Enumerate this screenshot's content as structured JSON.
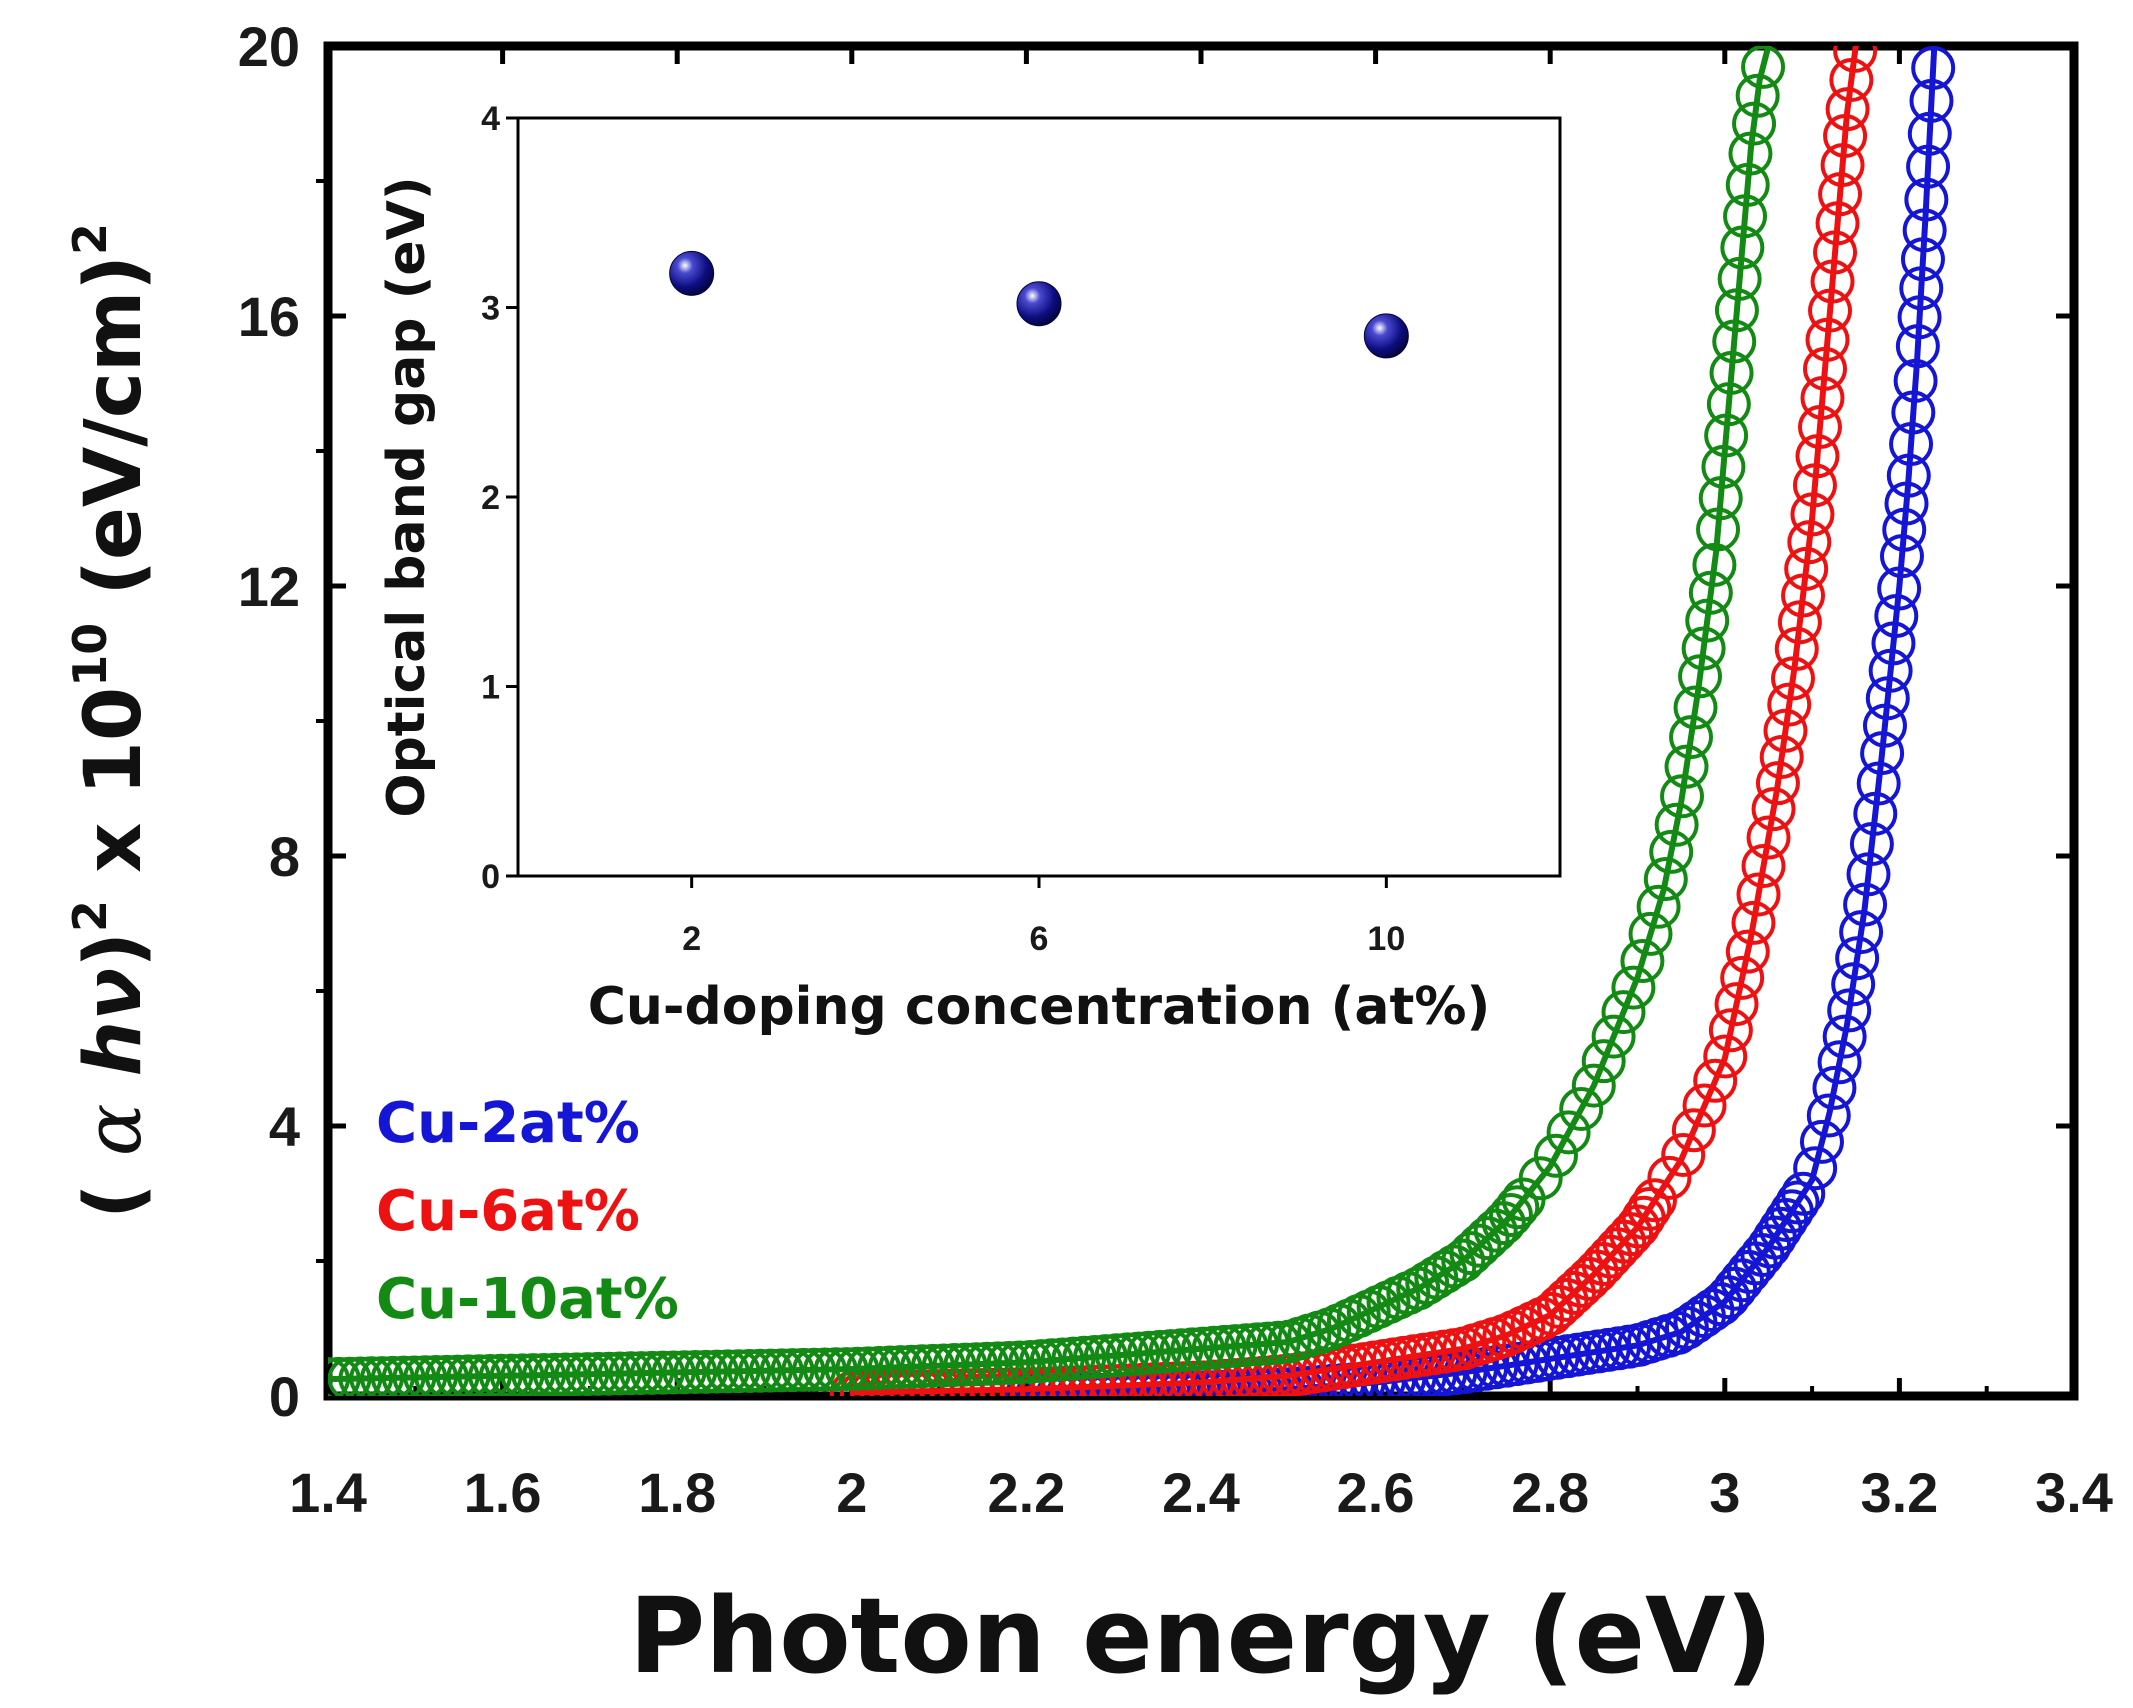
{
  "chart_data": [
    {
      "type": "scatter",
      "role": "main",
      "title": "",
      "xlabel": "Photon energy (eV)",
      "ylabel": {
        "open": "( ",
        "alpha": "α",
        "hv": " hν",
        "close": ")",
        "sup1": "2",
        "mid": " x 10",
        "sup2": "10",
        "unit": " (eV/cm)",
        "sup3": "2"
      },
      "xlim": [
        1.4,
        3.4
      ],
      "ylim": [
        0,
        20
      ],
      "xticks": [
        "1.4",
        "1.6",
        "1.8",
        "2",
        "2.2",
        "2.4",
        "2.6",
        "2.8",
        "3",
        "3.2",
        "3.4"
      ],
      "yticks": [
        "0",
        "4",
        "8",
        "12",
        "16",
        "20"
      ],
      "legend_position": "bottom-left",
      "series": [
        {
          "name": "Cu-2at%",
          "color": "#1515d6",
          "marker": "open-circle",
          "fit_line": true,
          "x": [
            2.2,
            2.4,
            2.5,
            2.6,
            2.7,
            2.8,
            2.85,
            2.9,
            2.95,
            3.0,
            3.05,
            3.1,
            3.12,
            3.14,
            3.16,
            3.18,
            3.2,
            3.21,
            3.22,
            3.23,
            3.24
          ],
          "y": [
            0.0,
            0.05,
            0.1,
            0.2,
            0.35,
            0.55,
            0.65,
            0.75,
            0.95,
            1.4,
            2.2,
            3.2,
            4.2,
            5.5,
            7.2,
            9.5,
            12.0,
            13.5,
            15.3,
            17.5,
            20.0
          ]
        },
        {
          "name": "Cu-6at%",
          "color": "#ee1111",
          "marker": "open-circle",
          "fit_line": true,
          "x": [
            2.0,
            2.2,
            2.4,
            2.5,
            2.6,
            2.65,
            2.7,
            2.75,
            2.8,
            2.85,
            2.9,
            2.95,
            3.0,
            3.03,
            3.06,
            3.08,
            3.1,
            3.11,
            3.12,
            3.13,
            3.14,
            3.15
          ],
          "y": [
            0.05,
            0.1,
            0.2,
            0.3,
            0.5,
            0.6,
            0.7,
            0.9,
            1.2,
            1.8,
            2.5,
            3.5,
            5.0,
            6.8,
            9.0,
            10.8,
            13.0,
            14.5,
            16.0,
            17.5,
            19.0,
            20.0
          ]
        },
        {
          "name": "Cu-10at%",
          "color": "#138a13",
          "marker": "open-circle",
          "fit_line": true,
          "x": [
            1.4,
            1.6,
            1.8,
            2.0,
            2.2,
            2.4,
            2.5,
            2.55,
            2.6,
            2.65,
            2.7,
            2.75,
            2.8,
            2.85,
            2.9,
            2.93,
            2.95,
            2.97,
            2.99,
            3.0,
            3.01,
            3.02,
            3.03,
            3.04,
            3.05
          ],
          "y": [
            0.25,
            0.3,
            0.35,
            0.4,
            0.5,
            0.7,
            0.8,
            1.0,
            1.3,
            1.6,
            2.0,
            2.6,
            3.4,
            4.6,
            6.2,
            7.5,
            8.8,
            10.5,
            12.5,
            14.0,
            15.5,
            17.0,
            18.5,
            19.5,
            20.0
          ]
        }
      ]
    },
    {
      "type": "scatter",
      "role": "inset",
      "title": "",
      "xlabel": "Cu-doping concentration (at%)",
      "ylabel": "Optical band gap (eV)",
      "xlim": [
        0,
        12
      ],
      "ylim": [
        0,
        4
      ],
      "xticks": [
        "2",
        "6",
        "10"
      ],
      "yticks": [
        "0",
        "1",
        "2",
        "3",
        "4"
      ],
      "series": [
        {
          "name": "band gap",
          "color": "#0d0d80",
          "marker": "filled-sphere",
          "x": [
            2,
            6,
            10
          ],
          "y": [
            3.18,
            3.02,
            2.85
          ]
        }
      ]
    }
  ]
}
